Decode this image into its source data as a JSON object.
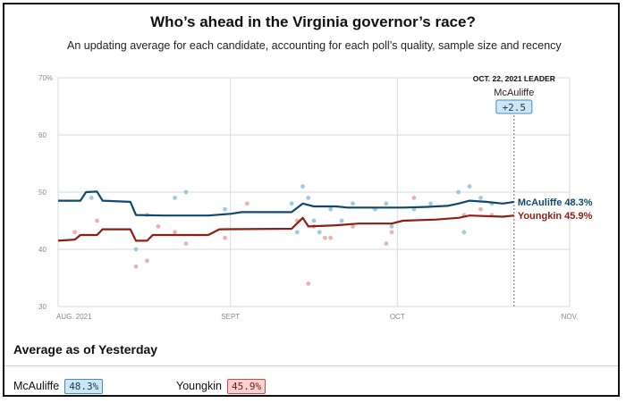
{
  "chart_data": {
    "type": "line",
    "title": "Who’s ahead in the Virginia governor’s race?",
    "subtitle": "An updating average for each candidate, accounting for each poll’s quality, sample size and recency",
    "ylim": [
      30,
      70
    ],
    "yticks": [
      30,
      40,
      50,
      60,
      70
    ],
    "ytick_labels": [
      "30",
      "40",
      "50",
      "60",
      "70%"
    ],
    "x_start": "2021-08-01",
    "x_end": "2021-11-01",
    "xticks": [
      {
        "date": "2021-08-01",
        "label": "AUG. 2021"
      },
      {
        "date": "2021-09-01",
        "label": "SEPT"
      },
      {
        "date": "2021-10-01",
        "label": "OCT"
      },
      {
        "date": "2021-11-01",
        "label": "NOV."
      }
    ],
    "series": [
      {
        "name": "McAuliffe",
        "color": "#0f4a6b",
        "end_label": "McAuliffe 48.3%",
        "line": [
          [
            "2021-08-01",
            48.5
          ],
          [
            "2021-08-05",
            48.5
          ],
          [
            "2021-08-06",
            50.0
          ],
          [
            "2021-08-08",
            50.1
          ],
          [
            "2021-08-09",
            48.5
          ],
          [
            "2021-08-14",
            48.3
          ],
          [
            "2021-08-15",
            46.0
          ],
          [
            "2021-08-20",
            45.9
          ],
          [
            "2021-08-28",
            45.9
          ],
          [
            "2021-09-01",
            46.2
          ],
          [
            "2021-09-03",
            46.5
          ],
          [
            "2021-09-12",
            46.5
          ],
          [
            "2021-09-14",
            48.0
          ],
          [
            "2021-09-16",
            47.5
          ],
          [
            "2021-09-20",
            47.5
          ],
          [
            "2021-09-22",
            47.3
          ],
          [
            "2021-10-02",
            47.3
          ],
          [
            "2021-10-06",
            47.4
          ],
          [
            "2021-10-10",
            47.6
          ],
          [
            "2021-10-12",
            48.0
          ],
          [
            "2021-10-14",
            48.5
          ],
          [
            "2021-10-17",
            48.3
          ],
          [
            "2021-10-20",
            48.0
          ],
          [
            "2021-10-22",
            48.3
          ]
        ],
        "polls": [
          [
            "2021-08-07",
            49
          ],
          [
            "2021-08-15",
            40
          ],
          [
            "2021-08-17",
            46
          ],
          [
            "2021-08-22",
            49
          ],
          [
            "2021-08-24",
            50
          ],
          [
            "2021-08-31",
            47
          ],
          [
            "2021-09-12",
            48
          ],
          [
            "2021-09-13",
            43
          ],
          [
            "2021-09-14",
            51
          ],
          [
            "2021-09-15",
            49
          ],
          [
            "2021-09-16",
            45
          ],
          [
            "2021-09-17",
            43
          ],
          [
            "2021-09-19",
            47
          ],
          [
            "2021-09-21",
            45
          ],
          [
            "2021-09-23",
            48
          ],
          [
            "2021-09-27",
            47
          ],
          [
            "2021-09-29",
            48
          ],
          [
            "2021-09-30",
            44
          ],
          [
            "2021-10-04",
            47
          ],
          [
            "2021-10-07",
            48
          ],
          [
            "2021-10-12",
            50
          ],
          [
            "2021-10-13",
            43
          ],
          [
            "2021-10-14",
            51
          ],
          [
            "2021-10-16",
            49
          ],
          [
            "2021-10-18",
            48
          ]
        ]
      },
      {
        "name": "Youngkin",
        "color": "#8f1d12",
        "end_label": "Youngkin 45.9%",
        "line": [
          [
            "2021-08-01",
            41.5
          ],
          [
            "2021-08-04",
            41.7
          ],
          [
            "2021-08-05",
            42.5
          ],
          [
            "2021-08-08",
            42.5
          ],
          [
            "2021-08-09",
            43.5
          ],
          [
            "2021-08-14",
            43.5
          ],
          [
            "2021-08-15",
            41.5
          ],
          [
            "2021-08-17",
            41.5
          ],
          [
            "2021-08-18",
            42.5
          ],
          [
            "2021-08-28",
            42.5
          ],
          [
            "2021-08-30",
            43.5
          ],
          [
            "2021-09-12",
            43.6
          ],
          [
            "2021-09-14",
            45.5
          ],
          [
            "2021-09-15",
            44.0
          ],
          [
            "2021-09-20",
            44.2
          ],
          [
            "2021-09-24",
            44.5
          ],
          [
            "2021-09-30",
            44.5
          ],
          [
            "2021-10-02",
            45.0
          ],
          [
            "2021-10-08",
            45.2
          ],
          [
            "2021-10-12",
            45.5
          ],
          [
            "2021-10-14",
            45.9
          ],
          [
            "2021-10-20",
            45.7
          ],
          [
            "2021-10-22",
            45.9
          ]
        ],
        "polls": [
          [
            "2021-08-04",
            43
          ],
          [
            "2021-08-08",
            45
          ],
          [
            "2021-08-15",
            37
          ],
          [
            "2021-08-17",
            38
          ],
          [
            "2021-08-19",
            44
          ],
          [
            "2021-08-22",
            43
          ],
          [
            "2021-08-24",
            41
          ],
          [
            "2021-08-31",
            42
          ],
          [
            "2021-09-04",
            48
          ],
          [
            "2021-09-13",
            45
          ],
          [
            "2021-09-15",
            34
          ],
          [
            "2021-09-16",
            44
          ],
          [
            "2021-09-18",
            42
          ],
          [
            "2021-09-19",
            42
          ],
          [
            "2021-09-23",
            44
          ],
          [
            "2021-09-29",
            41
          ],
          [
            "2021-09-30",
            43
          ],
          [
            "2021-10-04",
            49
          ],
          [
            "2021-10-13",
            46
          ],
          [
            "2021-10-16",
            47
          ],
          [
            "2021-10-18",
            46
          ]
        ]
      }
    ],
    "leader_annotation": {
      "date": "2021-10-22",
      "label": "OCT. 22, 2021 LEADER",
      "leader": "McAuliffe",
      "margin": "+2.5"
    },
    "grid": true,
    "legend": "none"
  },
  "summary": {
    "title": "Average as of Yesterday",
    "candidates": [
      {
        "name": "McAuliffe",
        "value": "48.3%"
      },
      {
        "name": "Youngkin",
        "value": "45.9%"
      }
    ]
  }
}
